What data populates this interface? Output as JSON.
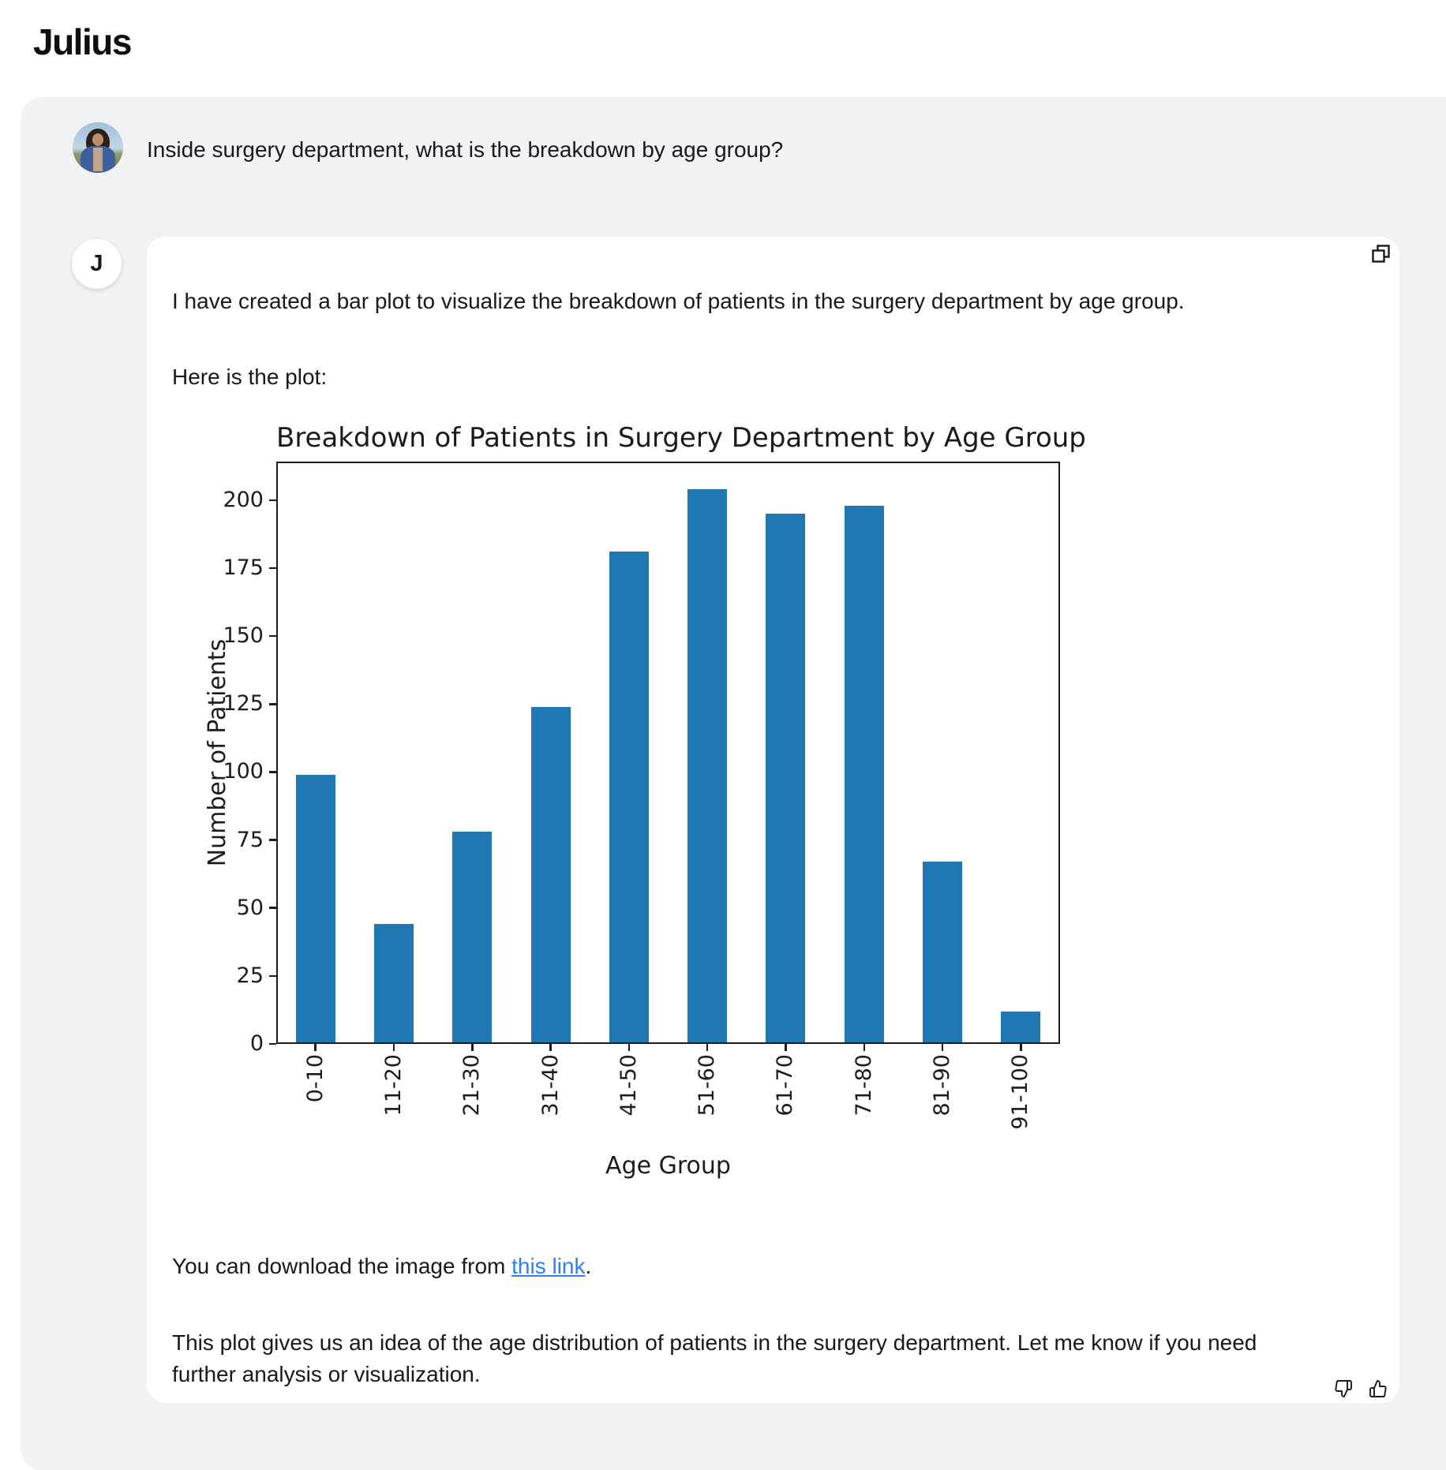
{
  "header": {
    "title": "Julius"
  },
  "user_message": {
    "text": "Inside surgery department, what is the breakdown by age group?"
  },
  "assistant_message": {
    "avatar_label": "J",
    "paragraph_1": "I have created a bar plot to visualize the breakdown of patients in the surgery department by age group.",
    "paragraph_2": "Here is the plot:",
    "download_prefix": "You can download the image from ",
    "download_link_text": "this link",
    "download_suffix": ".",
    "closing_text": "This plot gives us an idea of the age distribution of patients in the surgery department. Let me know if you need further analysis or visualization."
  },
  "icons": {
    "copy": "copy-icon",
    "thumbs_down": "thumbs-down-icon",
    "thumbs_up": "thumbs-up-icon"
  },
  "colors": {
    "page_bg": "#ffffff",
    "thread_bg": "#f1f2f4",
    "card_bg": "#ffffff",
    "text": "#17191c",
    "link": "#2d7ff9",
    "bar": "#1f77b4",
    "axis": "#1c1c1c"
  },
  "chart_data": {
    "type": "bar",
    "title": "Breakdown of Patients in Surgery Department by Age Group",
    "categories": [
      "0-10",
      "11-20",
      "21-30",
      "31-40",
      "41-50",
      "51-60",
      "61-70",
      "71-80",
      "81-90",
      "91-100"
    ],
    "values": [
      99,
      44,
      78,
      124,
      181,
      204,
      195,
      198,
      67,
      12
    ],
    "xlabel": "Age Group",
    "ylabel": "Number of Patients",
    "yticks": [
      0,
      25,
      50,
      75,
      100,
      125,
      150,
      175,
      200
    ],
    "ylim": [
      0,
      214.2
    ],
    "grid": false,
    "legend": null,
    "bar_color": "#1f77b4"
  }
}
